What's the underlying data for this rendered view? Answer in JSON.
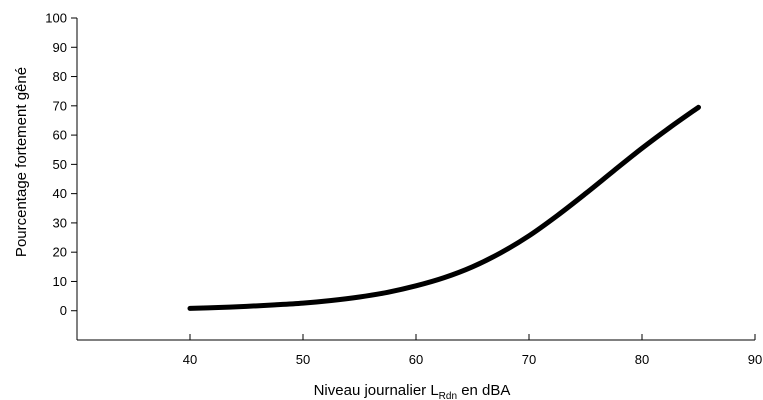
{
  "chart_data": {
    "type": "line",
    "title": "",
    "ylabel": "Pourcentage fortement gêné",
    "xlabel": {
      "prefix": "Niveau journalier L",
      "subscript": "Rdn",
      "suffix": " en dBA"
    },
    "xlim": [
      30,
      90
    ],
    "ylim": [
      -10,
      100
    ],
    "x_ticks": [
      40,
      50,
      60,
      70,
      80,
      90
    ],
    "y_ticks": [
      0,
      10,
      20,
      30,
      40,
      50,
      60,
      70,
      80,
      90,
      100
    ],
    "grid": false,
    "legend": "none",
    "series": [
      {
        "color": "#000000",
        "x": [
          40,
          42.5,
          45,
          47.5,
          50,
          52.5,
          55,
          57.5,
          60,
          62.5,
          65,
          67.5,
          70,
          72.5,
          75,
          77.5,
          80,
          82.5,
          85
        ],
        "y": [
          0.8,
          1.1,
          1.5,
          2.0,
          2.6,
          3.5,
          4.7,
          6.3,
          8.5,
          11.3,
          15.0,
          19.8,
          25.6,
          32.5,
          40.0,
          47.8,
          55.5,
          62.7,
          69.5
        ]
      }
    ]
  }
}
